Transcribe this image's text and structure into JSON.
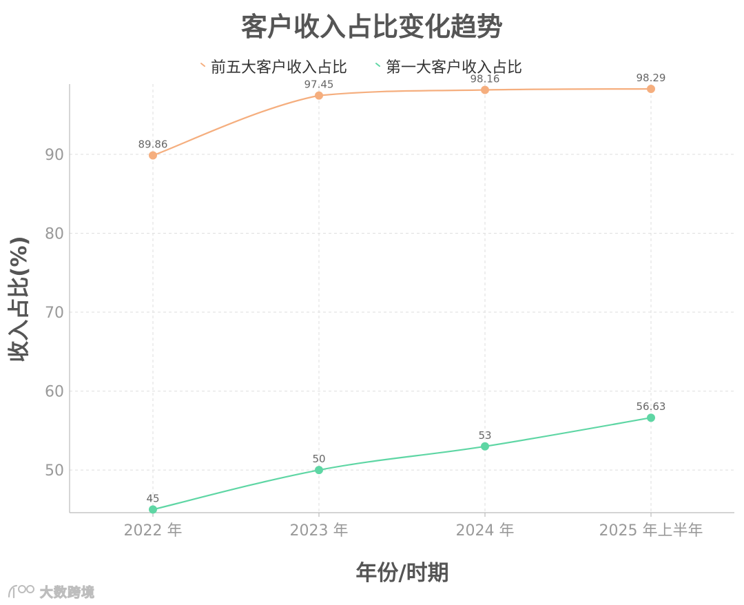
{
  "chart_data": {
    "type": "line",
    "title": "客户收入占比变化趋势",
    "xlabel": "年份/时期",
    "ylabel": "收入占比(%)",
    "categories": [
      "2022 年",
      "2023 年",
      "2024 年",
      "2025 年上半年"
    ],
    "yticks": [
      50,
      60,
      70,
      80,
      90
    ],
    "ylim": [
      44.6,
      98.9
    ],
    "grid": true,
    "legend_position": "top-center",
    "series": [
      {
        "name": "前五大客户收入占比",
        "values": [
          89.86,
          97.45,
          98.16,
          98.29
        ],
        "labels": [
          "89.86",
          "97.45",
          "98.16",
          "98.29"
        ],
        "color": "#F5AE7E"
      },
      {
        "name": "第一大客户收入占比",
        "values": [
          45,
          50,
          53,
          56.63
        ],
        "labels": [
          "45",
          "50",
          "53",
          "56.63"
        ],
        "color": "#5ED6A4"
      }
    ]
  },
  "watermark": {
    "text": "大数跨境",
    "icon": "brand-logo-icon"
  }
}
